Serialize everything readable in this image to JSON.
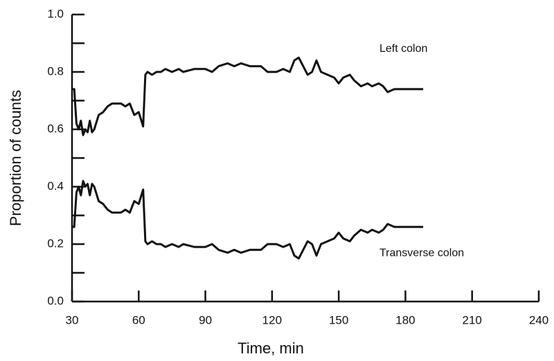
{
  "chart_data": {
    "type": "line",
    "xlabel": "Time, min",
    "ylabel": "Proportion of counts",
    "x": [
      30,
      31,
      32,
      33,
      34,
      35,
      36,
      37,
      38,
      39,
      40,
      42,
      44,
      46,
      48,
      50,
      52,
      54,
      56,
      58,
      60,
      62,
      63,
      64,
      66,
      68,
      70,
      72,
      75,
      78,
      80,
      85,
      90,
      93,
      96,
      100,
      103,
      106,
      110,
      115,
      118,
      122,
      125,
      128,
      130,
      132,
      134,
      136,
      138,
      140,
      142,
      145,
      148,
      150,
      152,
      155,
      157,
      160,
      163,
      165,
      168,
      170,
      172,
      175,
      178,
      182,
      188
    ],
    "series": [
      {
        "name": "Left colon",
        "color": "#111111",
        "values": [
          0.74,
          0.74,
          0.62,
          0.6,
          0.63,
          0.58,
          0.6,
          0.59,
          0.63,
          0.59,
          0.6,
          0.65,
          0.66,
          0.68,
          0.69,
          0.69,
          0.69,
          0.68,
          0.69,
          0.65,
          0.66,
          0.61,
          0.79,
          0.8,
          0.79,
          0.8,
          0.8,
          0.81,
          0.8,
          0.81,
          0.8,
          0.81,
          0.81,
          0.8,
          0.82,
          0.83,
          0.82,
          0.83,
          0.82,
          0.82,
          0.8,
          0.8,
          0.81,
          0.8,
          0.84,
          0.85,
          0.82,
          0.79,
          0.8,
          0.84,
          0.8,
          0.79,
          0.78,
          0.76,
          0.78,
          0.79,
          0.77,
          0.75,
          0.76,
          0.75,
          0.76,
          0.75,
          0.73,
          0.74,
          0.74,
          0.74,
          0.74
        ]
      },
      {
        "name": "Transverse colon",
        "color": "#111111",
        "values": [
          0.26,
          0.26,
          0.38,
          0.4,
          0.37,
          0.42,
          0.4,
          0.41,
          0.37,
          0.41,
          0.4,
          0.35,
          0.34,
          0.32,
          0.31,
          0.31,
          0.31,
          0.32,
          0.31,
          0.35,
          0.34,
          0.39,
          0.21,
          0.2,
          0.21,
          0.2,
          0.2,
          0.19,
          0.2,
          0.19,
          0.2,
          0.19,
          0.19,
          0.2,
          0.18,
          0.17,
          0.18,
          0.17,
          0.18,
          0.18,
          0.2,
          0.2,
          0.19,
          0.2,
          0.16,
          0.15,
          0.18,
          0.21,
          0.2,
          0.16,
          0.2,
          0.21,
          0.22,
          0.24,
          0.22,
          0.21,
          0.23,
          0.25,
          0.24,
          0.25,
          0.24,
          0.25,
          0.27,
          0.26,
          0.26,
          0.26,
          0.26
        ]
      }
    ],
    "xlim": [
      30,
      240
    ],
    "xticks": [
      30,
      60,
      90,
      120,
      150,
      180,
      210,
      240
    ],
    "ylim": [
      0,
      1
    ],
    "yticks": [
      {
        "value": 0,
        "label": "0.0"
      },
      {
        "value": 0.2,
        "label": "0.2"
      },
      {
        "value": 0.4,
        "label": "0.4"
      },
      {
        "value": 0.6,
        "label": "0.6"
      },
      {
        "value": 0.8,
        "label": "0.8"
      },
      {
        "value": 1,
        "label": "1.0"
      }
    ],
    "yminor_ticks": [
      0.1,
      0.3,
      0.5,
      0.7,
      0.9
    ],
    "grid": false
  }
}
